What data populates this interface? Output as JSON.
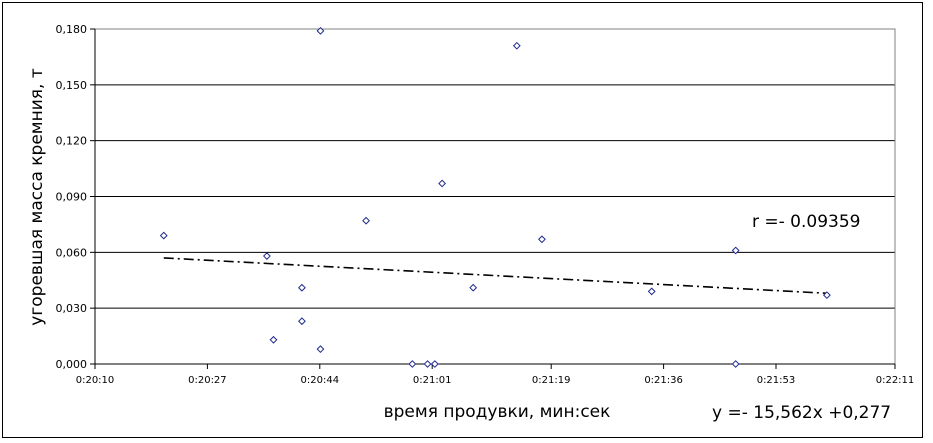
{
  "chart_data": {
    "type": "scatter",
    "title": "",
    "xlabel": "время продувки, мин:сек",
    "ylabel": "угоревшая масса кремния, т",
    "x_ticks": [
      {
        "label": "0:20:10",
        "value": 1210
      },
      {
        "label": "0:20:27",
        "value": 1227
      },
      {
        "label": "0:20:44",
        "value": 1244
      },
      {
        "label": "0:21:01",
        "value": 1261
      },
      {
        "label": "0:21:19",
        "value": 1279
      },
      {
        "label": "0:21:36",
        "value": 1296
      },
      {
        "label": "0:21:53",
        "value": 1313
      },
      {
        "label": "0:22:11",
        "value": 1331
      }
    ],
    "y_ticks": [
      {
        "label": "0,000",
        "value": 0.0
      },
      {
        "label": "0,030",
        "value": 0.03
      },
      {
        "label": "0,060",
        "value": 0.06
      },
      {
        "label": "0,090",
        "value": 0.09
      },
      {
        "label": "0,120",
        "value": 0.12
      },
      {
        "label": "0,150",
        "value": 0.15
      },
      {
        "label": "0,180",
        "value": 0.18
      }
    ],
    "xlim": [
      1210,
      1331
    ],
    "ylim": [
      0.0,
      0.18
    ],
    "grid": "horizontal",
    "legend": "none",
    "marker": "diamond",
    "marker_color": "#1f2a8c",
    "points": [
      {
        "x": 1220.4,
        "y": 0.069
      },
      {
        "x": 1236.0,
        "y": 0.058
      },
      {
        "x": 1237.0,
        "y": 0.013
      },
      {
        "x": 1241.3,
        "y": 0.041
      },
      {
        "x": 1241.3,
        "y": 0.023
      },
      {
        "x": 1244.1,
        "y": 0.179
      },
      {
        "x": 1244.1,
        "y": 0.008
      },
      {
        "x": 1251.0,
        "y": 0.077
      },
      {
        "x": 1258.0,
        "y": 0.0
      },
      {
        "x": 1260.3,
        "y": 0.0
      },
      {
        "x": 1261.4,
        "y": 0.0
      },
      {
        "x": 1262.5,
        "y": 0.097
      },
      {
        "x": 1267.2,
        "y": 0.041
      },
      {
        "x": 1273.8,
        "y": 0.171
      },
      {
        "x": 1277.6,
        "y": 0.067
      },
      {
        "x": 1294.2,
        "y": 0.039
      },
      {
        "x": 1306.9,
        "y": 0.061
      },
      {
        "x": 1306.9,
        "y": 0.0
      },
      {
        "x": 1320.7,
        "y": 0.037
      }
    ],
    "trendline": {
      "style": "dash-dot",
      "x": [
        1220.4,
        1320.7
      ],
      "y": [
        0.057,
        0.038
      ]
    },
    "annotations": {
      "r_text": "r =- 0.09359",
      "equation_text": "y =- 15,562x +0,277"
    }
  }
}
